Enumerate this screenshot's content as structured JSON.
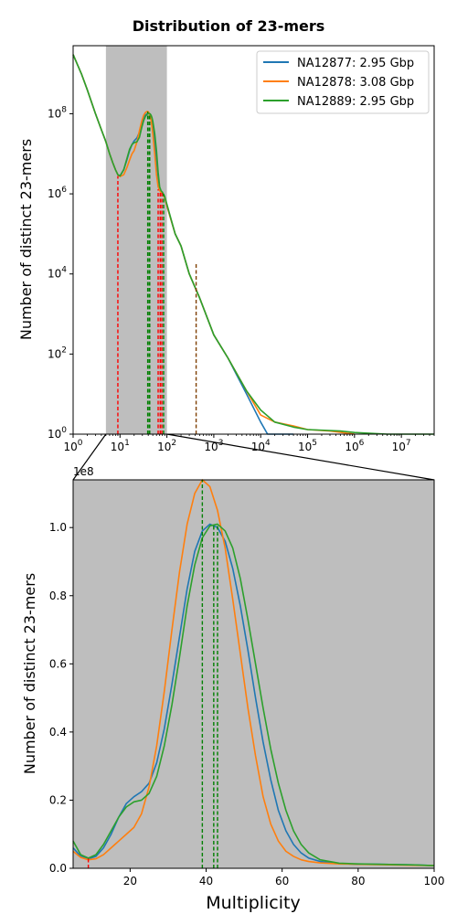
{
  "figure_title": "Distribution of 23-mers",
  "colors": {
    "NA12877": "#1f77b4",
    "NA12878": "#ff7f0e",
    "NA12889": "#2ca02c",
    "shade": "#bebebe",
    "red_marker": "#ff0000",
    "green_marker": "#008000",
    "brown_marker": "#7f3f00"
  },
  "chart_data": [
    {
      "type": "line",
      "scale": "log-log",
      "title": "",
      "xlabel": "",
      "ylabel": "Number of distinct 23-mers",
      "xlim": [
        1,
        50000000
      ],
      "ylim": [
        1,
        5000000000
      ],
      "x_ticks": [
        {
          "value": 1,
          "base": "10",
          "exp": "0"
        },
        {
          "value": 10,
          "base": "10",
          "exp": "1"
        },
        {
          "value": 100,
          "base": "10",
          "exp": "2"
        },
        {
          "value": 1000,
          "base": "10",
          "exp": "3"
        },
        {
          "value": 10000,
          "base": "10",
          "exp": "4"
        },
        {
          "value": 100000,
          "base": "10",
          "exp": "5"
        },
        {
          "value": 1000000,
          "base": "10",
          "exp": "6"
        },
        {
          "value": 10000000,
          "base": "10",
          "exp": "7"
        }
      ],
      "y_ticks": [
        {
          "value": 1,
          "base": "10",
          "exp": "0"
        },
        {
          "value": 100,
          "base": "10",
          "exp": "2"
        },
        {
          "value": 10000,
          "base": "10",
          "exp": "4"
        },
        {
          "value": 1000000,
          "base": "10",
          "exp": "6"
        },
        {
          "value": 100000000,
          "base": "10",
          "exp": "8"
        }
      ],
      "shaded_x_range": [
        5,
        100
      ],
      "legend_position": "top-right",
      "series": [
        {
          "name": "NA12877: 2.95 Gbp",
          "color_key": "NA12877",
          "x": [
            1,
            1.5,
            2,
            3,
            4,
            5,
            6,
            7,
            8,
            9,
            10,
            12,
            14,
            16,
            18,
            20,
            23,
            26,
            29,
            32,
            35,
            38,
            40,
            42,
            44,
            46,
            48,
            50,
            55,
            60,
            65,
            70,
            75,
            80,
            90,
            100,
            150,
            200,
            300,
            500,
            1000,
            2000,
            5000,
            10000,
            14000,
            20000,
            50000
          ],
          "y": [
            3000000000,
            1000000000,
            400000000,
            100000000,
            40000000,
            20000000,
            10000000,
            6000000,
            4000000,
            3000000,
            2800000,
            4000000,
            7000000,
            12000000,
            17000000,
            21000000,
            25000000,
            35000000,
            55000000,
            78000000,
            94000000,
            100000000,
            101000000,
            100000000,
            94000000,
            82000000,
            65000000,
            48000000,
            20000000,
            7000000,
            2500000,
            1300000,
            1150000,
            1100000,
            800000,
            500000,
            100000,
            50000,
            10000,
            2500,
            300,
            80,
            10,
            2,
            1,
            1,
            1
          ]
        },
        {
          "name": "NA12878: 3.08 Gbp",
          "color_key": "NA12878",
          "x": [
            1,
            1.5,
            2,
            3,
            4,
            5,
            6,
            7,
            8,
            9,
            10,
            12,
            14,
            16,
            18,
            20,
            23,
            26,
            29,
            32,
            35,
            38,
            40,
            42,
            44,
            46,
            48,
            50,
            55,
            60,
            65,
            70,
            75,
            80,
            90,
            100,
            150,
            200,
            300,
            500,
            1000,
            2000,
            5000,
            10000,
            20000,
            50000,
            100000,
            300000,
            1000000
          ],
          "y": [
            3000000000,
            1000000000,
            400000000,
            100000000,
            40000000,
            20000000,
            10000000,
            6000000,
            4000000,
            3000000,
            2700000,
            3000000,
            4500000,
            7000000,
            10000000,
            12000000,
            20000000,
            38000000,
            65000000,
            92000000,
            108000000,
            114000000,
            112000000,
            103000000,
            88000000,
            68000000,
            48000000,
            32000000,
            10000000,
            3000000,
            1500000,
            1200000,
            1100000,
            1050000,
            800000,
            500000,
            100000,
            50000,
            10000,
            2500,
            300,
            80,
            12,
            3,
            2,
            1.6,
            1.3,
            1.2,
            1
          ]
        },
        {
          "name": "NA12889: 2.95 Gbp",
          "color_key": "NA12889",
          "x": [
            1,
            1.5,
            2,
            3,
            4,
            5,
            6,
            7,
            8,
            9,
            10,
            12,
            14,
            16,
            18,
            20,
            23,
            26,
            29,
            32,
            35,
            38,
            40,
            42,
            44,
            46,
            48,
            50,
            55,
            60,
            65,
            70,
            75,
            80,
            90,
            100,
            150,
            200,
            300,
            500,
            1000,
            2000,
            5000,
            10000,
            20000,
            50000,
            100000,
            500000,
            1000000,
            5000000,
            50000000
          ],
          "y": [
            3000000000,
            1000000000,
            400000000,
            100000000,
            40000000,
            20000000,
            10000000,
            6000000,
            4000000,
            3000000,
            2800000,
            4000000,
            7500000,
            13000000,
            17000000,
            19000000,
            20000000,
            26000000,
            45000000,
            68000000,
            87000000,
            97000000,
            100000000,
            101000000,
            99000000,
            92000000,
            80000000,
            65000000,
            32000000,
            12000000,
            3500000,
            1500000,
            1200000,
            1100000,
            850000,
            550000,
            100000,
            50000,
            10000,
            2500,
            300,
            80,
            12,
            4,
            2,
            1.5,
            1.3,
            1.2,
            1.1,
            1,
            1
          ]
        }
      ],
      "markers": [
        {
          "x": 9,
          "y_top": 2800000,
          "color_key": "red_marker"
        },
        {
          "x": 39,
          "y_top": 114000000,
          "color_key": "green_marker"
        },
        {
          "x": 42,
          "y_top": 101000000,
          "color_key": "green_marker"
        },
        {
          "x": 43,
          "y_top": 101000000,
          "color_key": "green_marker"
        },
        {
          "x": 65,
          "y_top": 1300000,
          "color_key": "red_marker"
        },
        {
          "x": 72,
          "y_top": 1150000,
          "color_key": "red_marker"
        },
        {
          "x": 78,
          "y_top": 1100000,
          "color_key": "red_marker"
        },
        {
          "x": 85,
          "y_top": 1000000,
          "color_key": "green_marker"
        },
        {
          "x": 420,
          "y_top": 18000,
          "color_key": "brown_marker"
        }
      ]
    },
    {
      "type": "line",
      "scale": "linear",
      "title": "",
      "xlabel": "Multiplicity",
      "ylabel": "Number of distinct 23-mers",
      "y_offset_text": "1e8",
      "xlim": [
        5,
        100
      ],
      "ylim": [
        0,
        1.14
      ],
      "x_ticks": [
        20,
        40,
        60,
        80,
        100
      ],
      "y_ticks": [
        0.0,
        0.2,
        0.4,
        0.6,
        0.8,
        1.0
      ],
      "y_tick_labels": [
        "0.0",
        "0.2",
        "0.4",
        "0.6",
        "0.8",
        "1.0"
      ],
      "shaded": true,
      "series": [
        {
          "name": "NA12877: 2.95 Gbp",
          "color_key": "NA12877",
          "x": [
            5,
            7,
            9,
            11,
            13,
            15,
            17,
            19,
            21,
            23,
            25,
            27,
            29,
            31,
            33,
            35,
            37,
            39,
            41,
            43,
            45,
            47,
            49,
            51,
            53,
            55,
            57,
            59,
            61,
            63,
            65,
            67,
            70,
            75,
            80,
            85,
            90,
            95,
            100
          ],
          "y": [
            0.06,
            0.035,
            0.028,
            0.035,
            0.06,
            0.1,
            0.15,
            0.19,
            0.21,
            0.225,
            0.25,
            0.31,
            0.41,
            0.54,
            0.68,
            0.82,
            0.93,
            0.99,
            1.01,
            1.0,
            0.96,
            0.88,
            0.77,
            0.64,
            0.5,
            0.37,
            0.26,
            0.17,
            0.11,
            0.07,
            0.045,
            0.03,
            0.02,
            0.014,
            0.012,
            0.012,
            0.011,
            0.01,
            0.008
          ]
        },
        {
          "name": "NA12878: 3.08 Gbp",
          "color_key": "NA12878",
          "x": [
            5,
            7,
            9,
            11,
            13,
            15,
            17,
            19,
            21,
            23,
            25,
            27,
            29,
            31,
            33,
            35,
            37,
            39,
            41,
            43,
            45,
            47,
            49,
            51,
            53,
            55,
            57,
            59,
            61,
            63,
            65,
            67,
            70,
            75,
            80,
            85,
            90,
            95,
            100
          ],
          "y": [
            0.05,
            0.032,
            0.025,
            0.028,
            0.04,
            0.06,
            0.08,
            0.1,
            0.12,
            0.16,
            0.24,
            0.36,
            0.52,
            0.7,
            0.87,
            1.01,
            1.1,
            1.14,
            1.12,
            1.05,
            0.94,
            0.79,
            0.63,
            0.47,
            0.33,
            0.21,
            0.13,
            0.08,
            0.05,
            0.035,
            0.025,
            0.02,
            0.016,
            0.013,
            0.012,
            0.011,
            0.01,
            0.009,
            0.008
          ]
        },
        {
          "name": "NA12889: 2.95 Gbp",
          "color_key": "NA12889",
          "x": [
            5,
            7,
            9,
            11,
            13,
            15,
            17,
            19,
            21,
            23,
            25,
            27,
            29,
            31,
            33,
            35,
            37,
            39,
            41,
            43,
            45,
            47,
            49,
            51,
            53,
            55,
            57,
            59,
            61,
            63,
            65,
            67,
            70,
            75,
            80,
            85,
            90,
            95,
            100
          ],
          "y": [
            0.08,
            0.04,
            0.03,
            0.04,
            0.07,
            0.11,
            0.15,
            0.18,
            0.195,
            0.2,
            0.22,
            0.27,
            0.36,
            0.48,
            0.62,
            0.77,
            0.89,
            0.97,
            1.005,
            1.01,
            0.99,
            0.94,
            0.85,
            0.73,
            0.6,
            0.47,
            0.35,
            0.25,
            0.17,
            0.11,
            0.07,
            0.045,
            0.025,
            0.015,
            0.013,
            0.012,
            0.011,
            0.01,
            0.008
          ]
        }
      ],
      "markers": [
        {
          "x": 9,
          "y_top": 0.03,
          "color_key": "red_marker"
        },
        {
          "x": 39,
          "y_top": 1.14,
          "color_key": "green_marker"
        },
        {
          "x": 42,
          "y_top": 1.01,
          "color_key": "green_marker"
        },
        {
          "x": 43,
          "y_top": 1.01,
          "color_key": "green_marker"
        }
      ]
    }
  ]
}
